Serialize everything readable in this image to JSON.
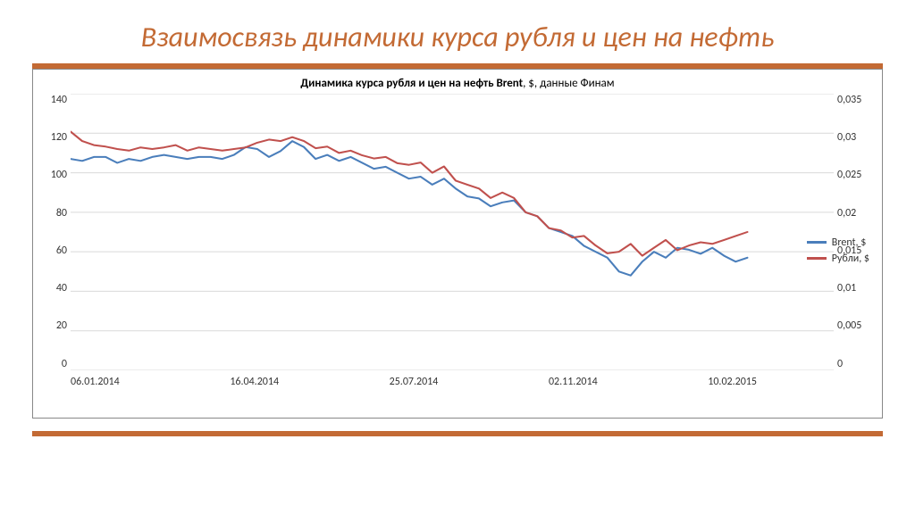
{
  "slide": {
    "title": "Взаимосвязь динамики курса рубля и цен на нефть",
    "title_color": "#c36a34",
    "title_fontsize": 32,
    "title_style": "italic",
    "accent_bar_color": "#c36a34",
    "background_color": "#ffffff"
  },
  "chart": {
    "type": "line-dual-axis",
    "title_bold": "Динамика курса рубля и цен на нефть Brent",
    "title_rest": ", $, данные Финам",
    "title_fontsize": 13,
    "border_color": "#888888",
    "background_color": "#ffffff",
    "grid_color": "#d9d9d9",
    "font_family": "Calibri, Arial, sans-serif",
    "axis_label_fontsize": 12,
    "y_left": {
      "min": 0,
      "max": 140,
      "step": 20,
      "ticks": [
        "140",
        "120",
        "100",
        "80",
        "60",
        "40",
        "20",
        "0"
      ]
    },
    "y_right": {
      "min": 0,
      "max": 0.035,
      "step": 0.005,
      "ticks": [
        "0,035",
        "0,03",
        "0,025",
        "0,02",
        "0,015",
        "0,01",
        "0,005",
        "0"
      ]
    },
    "x_labels": [
      "06.01.2014",
      "16.04.2014",
      "25.07.2014",
      "02.11.2014",
      "10.02.2015"
    ],
    "series": [
      {
        "name": "Brent, $",
        "axis": "left",
        "color": "#4a7ebb",
        "line_width": 2,
        "data": [
          107,
          106,
          108,
          108,
          105,
          107,
          106,
          108,
          109,
          108,
          107,
          108,
          108,
          107,
          109,
          113,
          112,
          108,
          111,
          116,
          113,
          107,
          109,
          106,
          108,
          105,
          102,
          103,
          100,
          97,
          98,
          94,
          97,
          92,
          88,
          87,
          83,
          85,
          86,
          80,
          78,
          72,
          70,
          68,
          63,
          60,
          57,
          50,
          48,
          55,
          60,
          57,
          62,
          61,
          59,
          62,
          58,
          55,
          57
        ]
      },
      {
        "name": "Рубли, $",
        "axis": "right",
        "color": "#c0504d",
        "line_width": 2,
        "data": [
          0.0302,
          0.029,
          0.0285,
          0.0283,
          0.028,
          0.0278,
          0.0282,
          0.028,
          0.0282,
          0.0285,
          0.0278,
          0.0282,
          0.028,
          0.0278,
          0.028,
          0.0282,
          0.0288,
          0.0292,
          0.029,
          0.0295,
          0.029,
          0.0281,
          0.0283,
          0.0275,
          0.0278,
          0.0272,
          0.0268,
          0.027,
          0.0262,
          0.026,
          0.0263,
          0.025,
          0.0258,
          0.024,
          0.0235,
          0.023,
          0.0218,
          0.0225,
          0.0218,
          0.02,
          0.0195,
          0.018,
          0.0177,
          0.0168,
          0.017,
          0.0158,
          0.0148,
          0.015,
          0.016,
          0.0145,
          0.0155,
          0.0165,
          0.0152,
          0.0158,
          0.0162,
          0.016,
          0.0165,
          0.017,
          0.0175
        ]
      }
    ],
    "legend": {
      "position": "right-middle",
      "fontsize": 12,
      "items": [
        {
          "label": "Brent, $",
          "color": "#4a7ebb"
        },
        {
          "label": "Рубли, $",
          "color": "#c0504d"
        }
      ]
    }
  }
}
